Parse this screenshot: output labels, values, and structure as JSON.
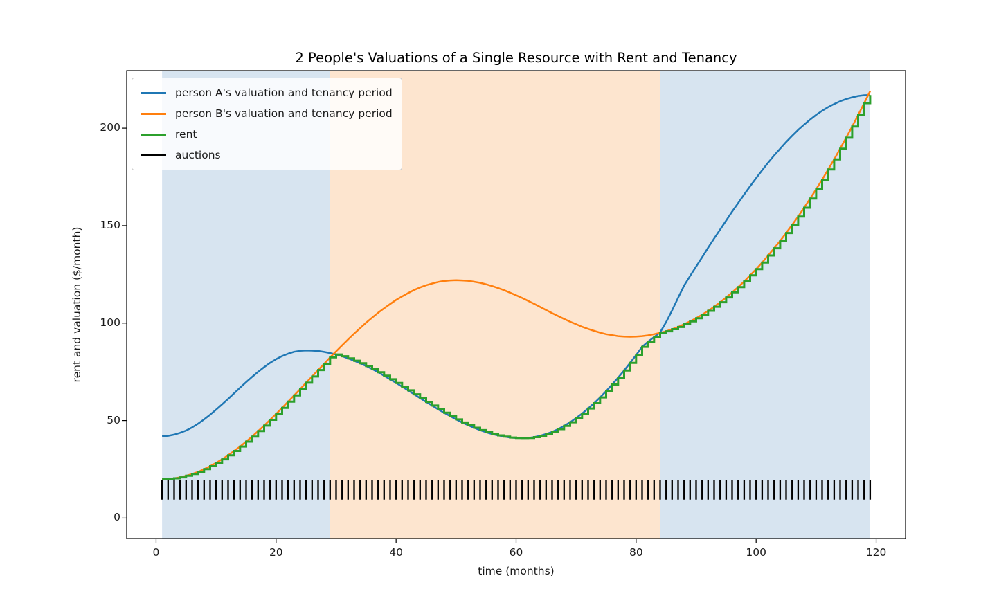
{
  "chart_data": {
    "type": "line",
    "title": "2 People's Valuations of a Single Resource with Rent and Tenancy",
    "xlabel": "time (months)",
    "ylabel": "rent and valuation ($/month)",
    "x_ticks": [
      0,
      20,
      40,
      60,
      80,
      100,
      120
    ],
    "y_ticks": [
      0,
      50,
      100,
      150,
      200
    ],
    "xlim": [
      -4.9,
      124.9
    ],
    "ylim": [
      -10.5,
      229.5
    ],
    "grid": false,
    "x_months": {
      "from": 1,
      "to": 119,
      "step": 1
    },
    "series": [
      {
        "name": "person A's valuation and tenancy period",
        "color": "#1f77b4",
        "line_style": "smooth",
        "values": [
          42.0,
          42.2,
          42.8,
          43.7,
          44.9,
          46.5,
          48.4,
          50.6,
          53.0,
          55.6,
          58.3,
          61.1,
          64.0,
          66.9,
          69.7,
          72.4,
          75.0,
          77.4,
          79.6,
          81.5,
          83.1,
          84.3,
          85.3,
          85.8,
          86.0,
          85.9,
          85.7,
          85.2,
          84.6,
          83.9,
          83.0,
          81.9,
          80.7,
          79.4,
          78.0,
          76.4,
          74.8,
          73.0,
          71.2,
          69.3,
          67.4,
          65.5,
          63.5,
          61.5,
          59.6,
          57.7,
          55.8,
          54.0,
          52.3,
          50.6,
          49.0,
          47.6,
          46.3,
          45.1,
          44.0,
          43.1,
          42.4,
          41.8,
          41.3,
          41.1,
          41.0,
          41.1,
          41.5,
          42.2,
          43.1,
          44.2,
          45.6,
          47.3,
          49.1,
          51.3,
          53.6,
          56.2,
          58.9,
          61.9,
          65.1,
          68.5,
          72.0,
          75.7,
          79.6,
          83.6,
          87.8,
          90.5,
          92.8,
          95.2,
          100.5,
          106.5,
          113.0,
          119.3,
          124.2,
          129.0,
          133.8,
          138.7,
          143.4,
          148.0,
          152.6,
          157.2,
          161.6,
          166.0,
          170.2,
          174.4,
          178.4,
          182.3,
          186.0,
          189.5,
          192.9,
          196.1,
          199.1,
          201.8,
          204.4,
          206.8,
          208.9,
          210.8,
          212.4,
          213.8,
          214.9,
          215.8,
          216.5,
          216.9,
          217.0
        ]
      },
      {
        "name": "person B's valuation and tenancy period",
        "color": "#ff7f0e",
        "line_style": "smooth",
        "values": [
          20.0,
          20.1,
          20.4,
          20.9,
          21.7,
          22.6,
          23.7,
          25.1,
          26.6,
          28.3,
          30.1,
          32.2,
          34.4,
          36.7,
          39.2,
          41.8,
          44.6,
          47.4,
          50.4,
          53.4,
          56.5,
          59.7,
          62.9,
          66.1,
          69.4,
          72.6,
          75.9,
          79.1,
          82.4,
          85.5,
          88.6,
          91.6,
          94.6,
          97.4,
          100.2,
          102.8,
          105.3,
          107.6,
          109.8,
          111.9,
          113.7,
          115.4,
          117.0,
          118.3,
          119.4,
          120.3,
          121.1,
          121.6,
          121.9,
          122.0,
          121.9,
          121.7,
          121.2,
          120.7,
          119.9,
          119.0,
          118.0,
          116.9,
          115.6,
          114.3,
          112.9,
          111.4,
          109.9,
          108.3,
          106.7,
          105.1,
          103.6,
          102.1,
          100.7,
          99.4,
          98.1,
          97.0,
          96.0,
          95.1,
          94.3,
          93.8,
          93.3,
          93.1,
          93.0,
          93.1,
          93.3,
          93.7,
          94.3,
          95.0,
          95.8,
          96.9,
          98.0,
          99.4,
          100.9,
          102.5,
          104.3,
          106.3,
          108.4,
          110.7,
          113.2,
          115.8,
          118.5,
          121.4,
          124.5,
          127.7,
          131.1,
          134.7,
          138.4,
          142.2,
          146.2,
          150.4,
          154.7,
          159.2,
          163.9,
          168.7,
          173.6,
          178.8,
          184.0,
          189.5,
          195.1,
          200.8,
          206.7,
          212.8,
          219.0
        ]
      },
      {
        "name": "rent",
        "color": "#2ca02c",
        "line_style": "step-post",
        "note": "rent each month equals the lower of the two valuations (second price)",
        "values": [
          20.0,
          20.1,
          20.4,
          20.9,
          21.7,
          22.6,
          23.7,
          25.1,
          26.6,
          28.3,
          30.1,
          32.2,
          34.4,
          36.7,
          39.2,
          41.8,
          44.6,
          47.4,
          50.4,
          53.4,
          56.5,
          59.7,
          62.9,
          66.1,
          69.4,
          72.6,
          75.9,
          79.1,
          82.4,
          83.9,
          83.0,
          81.9,
          80.7,
          79.4,
          78.0,
          76.4,
          74.8,
          73.0,
          71.2,
          69.3,
          67.4,
          65.5,
          63.5,
          61.5,
          59.6,
          57.7,
          55.8,
          54.0,
          52.3,
          50.6,
          49.0,
          47.6,
          46.3,
          45.1,
          44.0,
          43.1,
          42.4,
          41.8,
          41.3,
          41.1,
          41.0,
          41.1,
          41.5,
          42.2,
          43.1,
          44.2,
          45.6,
          47.3,
          49.1,
          51.3,
          53.6,
          56.2,
          58.9,
          61.9,
          65.1,
          68.5,
          72.0,
          75.7,
          79.6,
          83.6,
          87.8,
          90.5,
          92.8,
          95.0,
          95.8,
          96.9,
          98.0,
          99.4,
          100.9,
          102.5,
          104.3,
          106.3,
          108.4,
          110.7,
          113.2,
          115.8,
          118.5,
          121.4,
          124.5,
          127.7,
          131.1,
          134.7,
          138.4,
          142.2,
          146.2,
          150.4,
          154.7,
          159.2,
          163.9,
          168.7,
          173.6,
          178.8,
          184.0,
          189.5,
          195.1,
          200.8,
          206.7,
          212.8,
          217.0
        ]
      }
    ],
    "auctions": {
      "label": "auctions",
      "color": "#000000",
      "months": {
        "from": 1,
        "to": 119,
        "step": 1
      },
      "y_min": 9.5,
      "y_max": 19.5
    },
    "tenancy_bands": [
      {
        "start_month": 1,
        "end_month": 29,
        "tenant": "person A",
        "fill": "#d7e4f0"
      },
      {
        "start_month": 29,
        "end_month": 84,
        "tenant": "person B",
        "fill": "#fde5cf"
      },
      {
        "start_month": 84,
        "end_month": 119,
        "tenant": "person A",
        "fill": "#d7e4f0"
      }
    ],
    "legend": {
      "position": "upper left",
      "entries": [
        {
          "label": "person A's valuation and tenancy period",
          "color": "#1f77b4"
        },
        {
          "label": "person B's valuation and tenancy period",
          "color": "#ff7f0e"
        },
        {
          "label": "rent",
          "color": "#2ca02c"
        },
        {
          "label": "auctions",
          "color": "#000000"
        }
      ]
    }
  }
}
